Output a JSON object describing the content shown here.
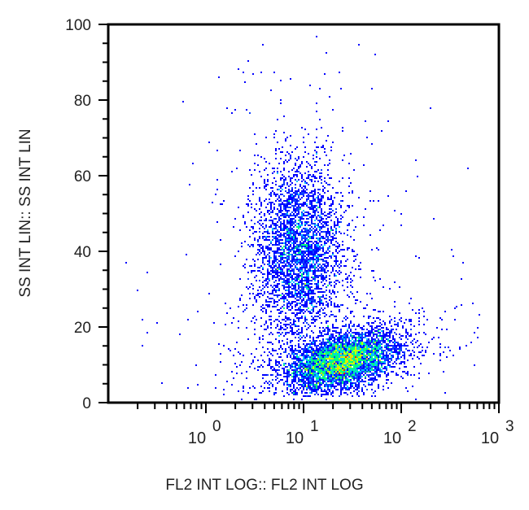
{
  "chart_data": {
    "type": "scatter",
    "subtype": "flow-cytometry density dot plot",
    "title": "",
    "xlabel": "FL2 INT LOG:: FL2 INT LOG",
    "ylabel": "SS INT LIN:: SS INT LIN",
    "x_scale": "log",
    "y_scale": "linear",
    "xlim": [
      0.1,
      1000
    ],
    "ylim": [
      0,
      100
    ],
    "x_ticks": [
      {
        "value": 1,
        "base": "10",
        "exp": "0"
      },
      {
        "value": 10,
        "base": "10",
        "exp": "1"
      },
      {
        "value": 100,
        "base": "10",
        "exp": "2"
      },
      {
        "value": 1000,
        "base": "10",
        "exp": "3"
      }
    ],
    "y_ticks": [
      "0",
      "20",
      "40",
      "60",
      "80",
      "100"
    ],
    "y_minor_step": 5,
    "grid": false,
    "legend": null,
    "color_scale": [
      "#0000ff",
      "#00c8ff",
      "#00ff80",
      "#c8ff00",
      "#ffd000",
      "#ff2000"
    ],
    "populations": [
      {
        "name": "dense-low-SS cluster",
        "x_center": 25,
        "y_center": 11,
        "x_log_spread": 0.28,
        "y_spread": 3.5,
        "tilt": 0.35,
        "count": 5200,
        "peak_color": "red"
      },
      {
        "name": "diffuse-high-SS cluster",
        "x_center": 9,
        "y_center": 40,
        "x_log_spread": 0.22,
        "y_spread": 11,
        "tilt": 0.0,
        "count": 3600,
        "peak_color": "green"
      },
      {
        "name": "scattered outliers",
        "x_range": [
          0.15,
          500
        ],
        "y_range": [
          2,
          82
        ],
        "count": 140
      }
    ],
    "notable_points": [
      {
        "x": 0.15,
        "y": 37
      },
      {
        "x": 0.22,
        "y": 15
      },
      {
        "x": 0.35,
        "y": 5
      },
      {
        "x": 0.55,
        "y": 18
      },
      {
        "x": 0.65,
        "y": 4
      },
      {
        "x": 0.8,
        "y": 10
      },
      {
        "x": 1.4,
        "y": 43
      },
      {
        "x": 50,
        "y": 83
      },
      {
        "x": 200,
        "y": 78
      },
      {
        "x": 480,
        "y": 62
      }
    ]
  }
}
